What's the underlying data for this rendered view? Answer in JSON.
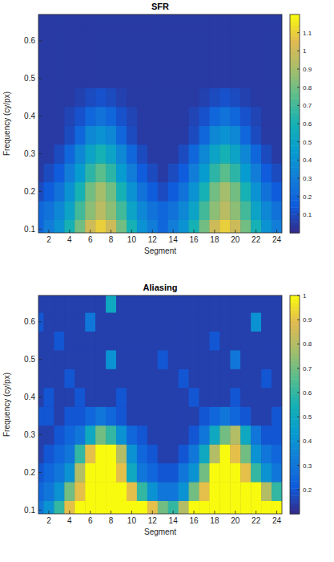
{
  "chart_data": [
    {
      "type": "heatmap",
      "title": "SFR",
      "x_label": "Segment",
      "y_label": "Frequency (cy/px)",
      "x": [
        1,
        2,
        3,
        4,
        5,
        6,
        7,
        8,
        9,
        10,
        11,
        12,
        13,
        14,
        15,
        16,
        17,
        18,
        19,
        20,
        21,
        22,
        23,
        24
      ],
      "y": [
        0.1,
        0.15,
        0.2,
        0.25,
        0.3,
        0.35,
        0.4,
        0.45,
        0.5,
        0.55,
        0.6,
        0.65
      ],
      "z": [
        [
          0.2,
          0.3,
          0.4,
          0.6,
          0.8,
          1.0,
          1.1,
          1.0,
          0.8,
          0.6,
          0.4,
          0.3,
          0.2,
          0.3,
          0.4,
          0.6,
          0.8,
          1.0,
          1.1,
          1.0,
          0.8,
          0.6,
          0.4,
          0.3
        ],
        [
          0.2,
          0.25,
          0.35,
          0.5,
          0.7,
          0.85,
          0.95,
          0.85,
          0.7,
          0.5,
          0.35,
          0.25,
          0.2,
          0.25,
          0.35,
          0.5,
          0.7,
          0.85,
          0.95,
          0.85,
          0.7,
          0.5,
          0.35,
          0.25
        ],
        [
          0.1,
          0.15,
          0.25,
          0.4,
          0.6,
          0.8,
          0.9,
          0.8,
          0.6,
          0.4,
          0.25,
          0.15,
          0.1,
          0.15,
          0.25,
          0.4,
          0.6,
          0.8,
          0.9,
          0.8,
          0.6,
          0.4,
          0.25,
          0.15
        ],
        [
          0.05,
          0.1,
          0.15,
          0.3,
          0.45,
          0.65,
          0.75,
          0.65,
          0.45,
          0.3,
          0.15,
          0.1,
          0.05,
          0.1,
          0.15,
          0.3,
          0.45,
          0.65,
          0.75,
          0.65,
          0.45,
          0.3,
          0.15,
          0.1
        ],
        [
          0.05,
          0.05,
          0.1,
          0.2,
          0.35,
          0.5,
          0.6,
          0.5,
          0.35,
          0.2,
          0.1,
          0.05,
          0.05,
          0.05,
          0.1,
          0.2,
          0.35,
          0.5,
          0.6,
          0.5,
          0.35,
          0.2,
          0.1,
          0.05
        ],
        [
          0.05,
          0.05,
          0.05,
          0.1,
          0.2,
          0.35,
          0.4,
          0.35,
          0.2,
          0.1,
          0.05,
          0.05,
          0.05,
          0.05,
          0.05,
          0.1,
          0.2,
          0.35,
          0.4,
          0.35,
          0.2,
          0.1,
          0.05,
          0.05
        ],
        [
          0.05,
          0.05,
          0.05,
          0.08,
          0.12,
          0.2,
          0.25,
          0.2,
          0.12,
          0.08,
          0.05,
          0.05,
          0.05,
          0.05,
          0.05,
          0.08,
          0.12,
          0.2,
          0.25,
          0.2,
          0.12,
          0.08,
          0.05,
          0.05
        ],
        [
          0.05,
          0.05,
          0.05,
          0.05,
          0.07,
          0.1,
          0.12,
          0.1,
          0.07,
          0.05,
          0.05,
          0.05,
          0.05,
          0.05,
          0.05,
          0.05,
          0.07,
          0.1,
          0.12,
          0.1,
          0.07,
          0.05,
          0.05,
          0.05
        ],
        [
          0.05,
          0.05,
          0.05,
          0.05,
          0.05,
          0.05,
          0.05,
          0.05,
          0.05,
          0.05,
          0.05,
          0.05,
          0.05,
          0.05,
          0.05,
          0.05,
          0.05,
          0.05,
          0.05,
          0.05,
          0.05,
          0.05,
          0.05,
          0.05
        ],
        [
          0.05,
          0.05,
          0.05,
          0.05,
          0.05,
          0.05,
          0.05,
          0.05,
          0.05,
          0.05,
          0.05,
          0.05,
          0.05,
          0.05,
          0.05,
          0.05,
          0.05,
          0.05,
          0.05,
          0.05,
          0.05,
          0.05,
          0.05,
          0.05
        ],
        [
          0.05,
          0.05,
          0.05,
          0.05,
          0.05,
          0.05,
          0.05,
          0.05,
          0.05,
          0.05,
          0.05,
          0.05,
          0.05,
          0.05,
          0.05,
          0.05,
          0.05,
          0.05,
          0.05,
          0.05,
          0.05,
          0.05,
          0.05,
          0.05
        ],
        [
          0.05,
          0.05,
          0.05,
          0.05,
          0.05,
          0.05,
          0.05,
          0.05,
          0.05,
          0.05,
          0.05,
          0.05,
          0.05,
          0.05,
          0.05,
          0.05,
          0.05,
          0.05,
          0.05,
          0.05,
          0.05,
          0.05,
          0.05,
          0.05
        ]
      ],
      "xlim": [
        1,
        24.5
      ],
      "ylim": [
        0.09,
        0.67
      ],
      "xticks": [
        2,
        4,
        6,
        8,
        10,
        12,
        14,
        16,
        18,
        20,
        22,
        24
      ],
      "yticks": [
        0.1,
        0.2,
        0.3,
        0.4,
        0.5,
        0.6
      ],
      "zlim": [
        0,
        1.2
      ],
      "zticks": [
        0.1,
        0.2,
        0.3,
        0.4,
        0.5,
        0.6,
        0.7,
        0.8,
        0.9,
        1,
        1.1
      ]
    },
    {
      "type": "heatmap",
      "title": "Aliasing",
      "x_label": "Segment",
      "y_label": "Frequency (cy/px)",
      "x": [
        1,
        2,
        3,
        4,
        5,
        6,
        7,
        8,
        9,
        10,
        11,
        12,
        13,
        14,
        15,
        16,
        17,
        18,
        19,
        20,
        21,
        22,
        23,
        24
      ],
      "y": [
        0.1,
        0.15,
        0.2,
        0.25,
        0.3,
        0.35,
        0.4,
        0.45,
        0.5,
        0.55,
        0.6,
        0.65
      ],
      "z": [
        [
          0.3,
          0.4,
          0.6,
          0.9,
          1,
          1,
          1,
          1,
          1,
          1,
          1,
          0.9,
          0.7,
          0.6,
          0.8,
          1,
          1,
          1,
          1,
          1,
          1,
          1,
          1,
          1
        ],
        [
          0.25,
          0.3,
          0.4,
          0.7,
          0.9,
          1,
          1,
          1,
          1,
          0.9,
          0.6,
          0.4,
          0.3,
          0.3,
          0.4,
          0.7,
          0.9,
          1,
          1,
          1,
          1,
          1,
          0.8,
          0.6
        ],
        [
          0.2,
          0.25,
          0.3,
          0.4,
          0.8,
          1,
          1,
          1,
          0.9,
          0.5,
          0.3,
          0.25,
          0.2,
          0.2,
          0.3,
          0.4,
          0.7,
          1,
          1,
          1,
          0.9,
          0.6,
          0.4,
          0.3
        ],
        [
          0.15,
          0.2,
          0.25,
          0.3,
          0.6,
          0.9,
          1,
          1,
          0.8,
          0.4,
          0.25,
          0.2,
          0.15,
          0.15,
          0.2,
          0.3,
          0.5,
          0.8,
          1,
          0.9,
          0.7,
          0.4,
          0.3,
          0.25
        ],
        [
          0.15,
          0.15,
          0.2,
          0.25,
          0.3,
          0.5,
          0.7,
          0.6,
          0.4,
          0.25,
          0.2,
          0.15,
          0.15,
          0.15,
          0.15,
          0.2,
          0.3,
          0.5,
          0.7,
          0.8,
          0.5,
          0.3,
          0.2,
          0.2
        ],
        [
          0.2,
          0.2,
          0.15,
          0.2,
          0.2,
          0.25,
          0.3,
          0.25,
          0.2,
          0.15,
          0.15,
          0.15,
          0.15,
          0.15,
          0.15,
          0.15,
          0.2,
          0.25,
          0.3,
          0.25,
          0.2,
          0.15,
          0.15,
          0.2
        ],
        [
          0.15,
          0.2,
          0.15,
          0.15,
          0.2,
          0.15,
          0.15,
          0.15,
          0.2,
          0.15,
          0.15,
          0.15,
          0.15,
          0.15,
          0.15,
          0.2,
          0.15,
          0.15,
          0.15,
          0.2,
          0.15,
          0.15,
          0.15,
          0.15
        ],
        [
          0.15,
          0.15,
          0.15,
          0.2,
          0.15,
          0.15,
          0.15,
          0.15,
          0.15,
          0.15,
          0.15,
          0.15,
          0.15,
          0.15,
          0.2,
          0.15,
          0.15,
          0.15,
          0.15,
          0.15,
          0.15,
          0.15,
          0.2,
          0.15
        ],
        [
          0.15,
          0.15,
          0.15,
          0.15,
          0.15,
          0.15,
          0.15,
          0.4,
          0.15,
          0.15,
          0.15,
          0.15,
          0.2,
          0.15,
          0.15,
          0.15,
          0.15,
          0.15,
          0.15,
          0.3,
          0.15,
          0.15,
          0.15,
          0.15
        ],
        [
          0.15,
          0.15,
          0.2,
          0.15,
          0.15,
          0.15,
          0.15,
          0.15,
          0.15,
          0.15,
          0.15,
          0.15,
          0.15,
          0.15,
          0.15,
          0.15,
          0.15,
          0.2,
          0.15,
          0.15,
          0.15,
          0.15,
          0.15,
          0.15
        ],
        [
          0.2,
          0.15,
          0.15,
          0.15,
          0.15,
          0.3,
          0.15,
          0.15,
          0.15,
          0.15,
          0.15,
          0.15,
          0.15,
          0.15,
          0.15,
          0.15,
          0.15,
          0.15,
          0.15,
          0.15,
          0.15,
          0.4,
          0.15,
          0.15
        ],
        [
          0.15,
          0.15,
          0.15,
          0.15,
          0.15,
          0.15,
          0.15,
          0.5,
          0.15,
          0.15,
          0.15,
          0.15,
          0.15,
          0.15,
          0.15,
          0.15,
          0.15,
          0.15,
          0.15,
          0.15,
          0.15,
          0.15,
          0.15,
          0.15
        ]
      ],
      "xlim": [
        1,
        24.5
      ],
      "ylim": [
        0.09,
        0.67
      ],
      "xticks": [
        2,
        4,
        6,
        8,
        10,
        12,
        14,
        16,
        18,
        20,
        22,
        24
      ],
      "yticks": [
        0.1,
        0.2,
        0.3,
        0.4,
        0.5,
        0.6
      ],
      "zlim": [
        0.1,
        1
      ],
      "zticks": [
        0.2,
        0.3,
        0.4,
        0.5,
        0.6,
        0.7,
        0.8,
        0.9,
        1
      ]
    }
  ]
}
